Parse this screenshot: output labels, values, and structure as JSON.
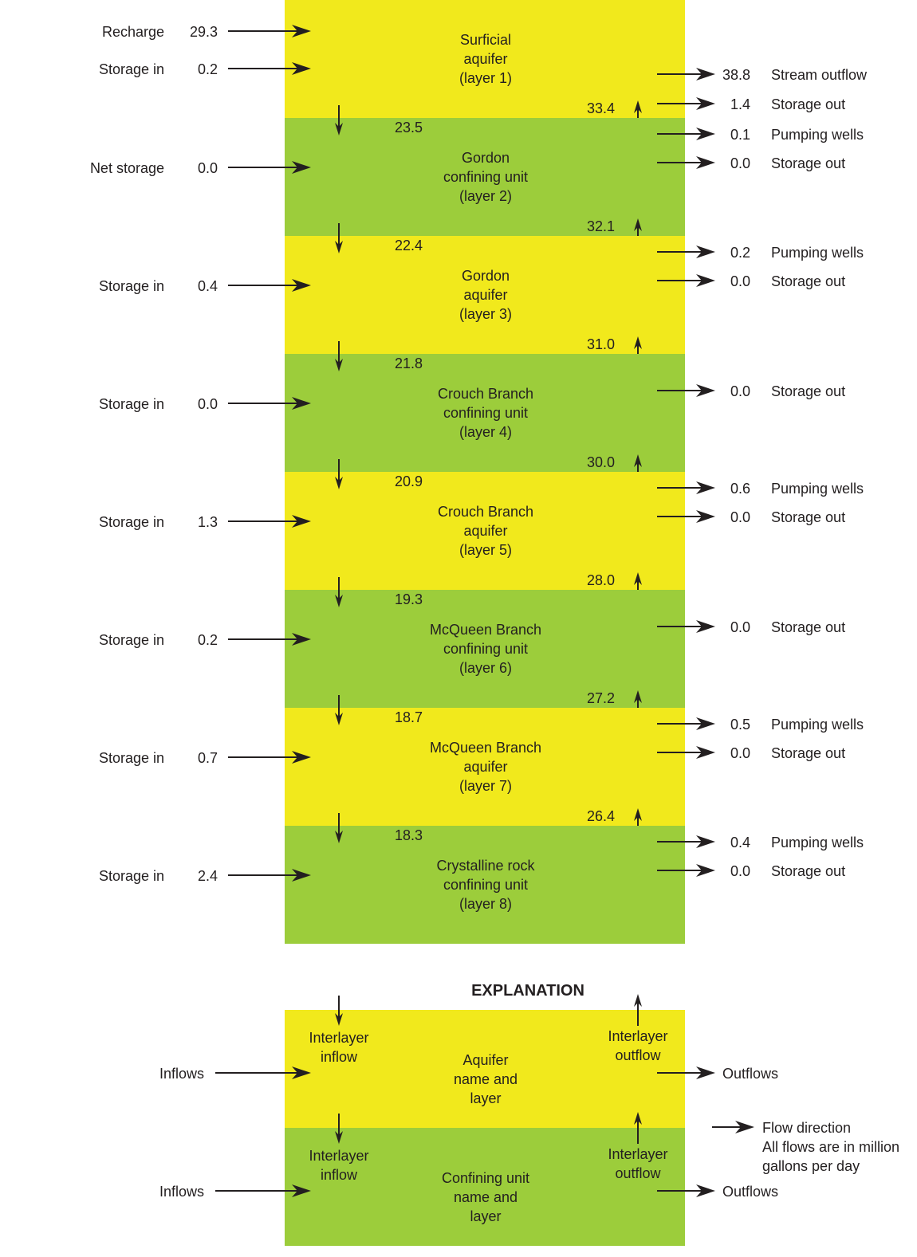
{
  "colors": {
    "aquifer": "#f1e91c",
    "confining": "#9ccd3b",
    "ink": "#231f20",
    "background": "#ffffff"
  },
  "layers": [
    {
      "type": "aquifer",
      "name": [
        "Surficial",
        "aquifer",
        "(layer 1)"
      ],
      "down_in": null,
      "up_out": "33.4",
      "inflows": [
        {
          "label": "Recharge",
          "value": "29.3"
        },
        {
          "label": "Storage in",
          "value": "0.2"
        }
      ],
      "outflows": [
        {
          "value": "38.8",
          "label": "Stream outflow"
        },
        {
          "value": "1.4",
          "label": "Storage out"
        }
      ]
    },
    {
      "type": "confining",
      "name": [
        "Gordon",
        "confining unit",
        "(layer 2)"
      ],
      "down_in": "23.5",
      "up_out": "32.1",
      "inflows": [
        {
          "label": "Net storage",
          "value": "0.0"
        }
      ],
      "outflows": [
        {
          "value": "0.1",
          "label": "Pumping wells"
        },
        {
          "value": "0.0",
          "label": "Storage out"
        }
      ]
    },
    {
      "type": "aquifer",
      "name": [
        "Gordon",
        "aquifer",
        "(layer 3)"
      ],
      "down_in": "22.4",
      "up_out": "31.0",
      "inflows": [
        {
          "label": "Storage in",
          "value": "0.4"
        }
      ],
      "outflows": [
        {
          "value": "0.2",
          "label": "Pumping wells"
        },
        {
          "value": "0.0",
          "label": "Storage out"
        }
      ]
    },
    {
      "type": "confining",
      "name": [
        "Crouch Branch",
        "confining unit",
        "(layer 4)"
      ],
      "down_in": "21.8",
      "up_out": "30.0",
      "inflows": [
        {
          "label": "Storage in",
          "value": "0.0"
        }
      ],
      "outflows": [
        {
          "value": "0.0",
          "label": "Storage out"
        }
      ]
    },
    {
      "type": "aquifer",
      "name": [
        "Crouch Branch",
        "aquifer",
        "(layer 5)"
      ],
      "down_in": "20.9",
      "up_out": "28.0",
      "inflows": [
        {
          "label": "Storage in",
          "value": "1.3"
        }
      ],
      "outflows": [
        {
          "value": "0.6",
          "label": "Pumping wells"
        },
        {
          "value": "0.0",
          "label": "Storage out"
        }
      ]
    },
    {
      "type": "confining",
      "name": [
        "McQueen Branch",
        "confining unit",
        "(layer 6)"
      ],
      "down_in": "19.3",
      "up_out": "27.2",
      "inflows": [
        {
          "label": "Storage in",
          "value": "0.2"
        }
      ],
      "outflows": [
        {
          "value": "0.0",
          "label": "Storage out"
        }
      ]
    },
    {
      "type": "aquifer",
      "name": [
        "McQueen Branch",
        "aquifer",
        "(layer 7)"
      ],
      "down_in": "18.7",
      "up_out": "26.4",
      "inflows": [
        {
          "label": "Storage in",
          "value": "0.7"
        }
      ],
      "outflows": [
        {
          "value": "0.5",
          "label": "Pumping wells"
        },
        {
          "value": "0.0",
          "label": "Storage out"
        }
      ]
    },
    {
      "type": "confining",
      "name": [
        "Crystalline rock",
        "confining unit",
        "(layer 8)"
      ],
      "down_in": "18.3",
      "up_out": null,
      "inflows": [
        {
          "label": "Storage in",
          "value": "2.4"
        }
      ],
      "outflows": [
        {
          "value": "0.4",
          "label": "Pumping wells"
        },
        {
          "value": "0.0",
          "label": "Storage out"
        }
      ]
    }
  ],
  "explanation": {
    "title": "EXPLANATION",
    "aquifer_box": {
      "interlayer_inflow": [
        "Interlayer",
        "inflow"
      ],
      "interlayer_outflow": [
        "Interlayer",
        "outflow"
      ],
      "name": [
        "Aquifer",
        "name and",
        "layer"
      ],
      "inflows": "Inflows",
      "outflows": "Outflows"
    },
    "confining_box": {
      "interlayer_inflow": [
        "Interlayer",
        "inflow"
      ],
      "interlayer_outflow": [
        "Interlayer",
        "outflow"
      ],
      "name": [
        "Confining unit",
        "name and",
        "layer"
      ],
      "inflows": "Inflows",
      "outflows": "Outflows"
    },
    "legend": {
      "arrow_label": "Flow direction",
      "note": [
        "All flows are in million",
        "gallons per day"
      ]
    }
  }
}
